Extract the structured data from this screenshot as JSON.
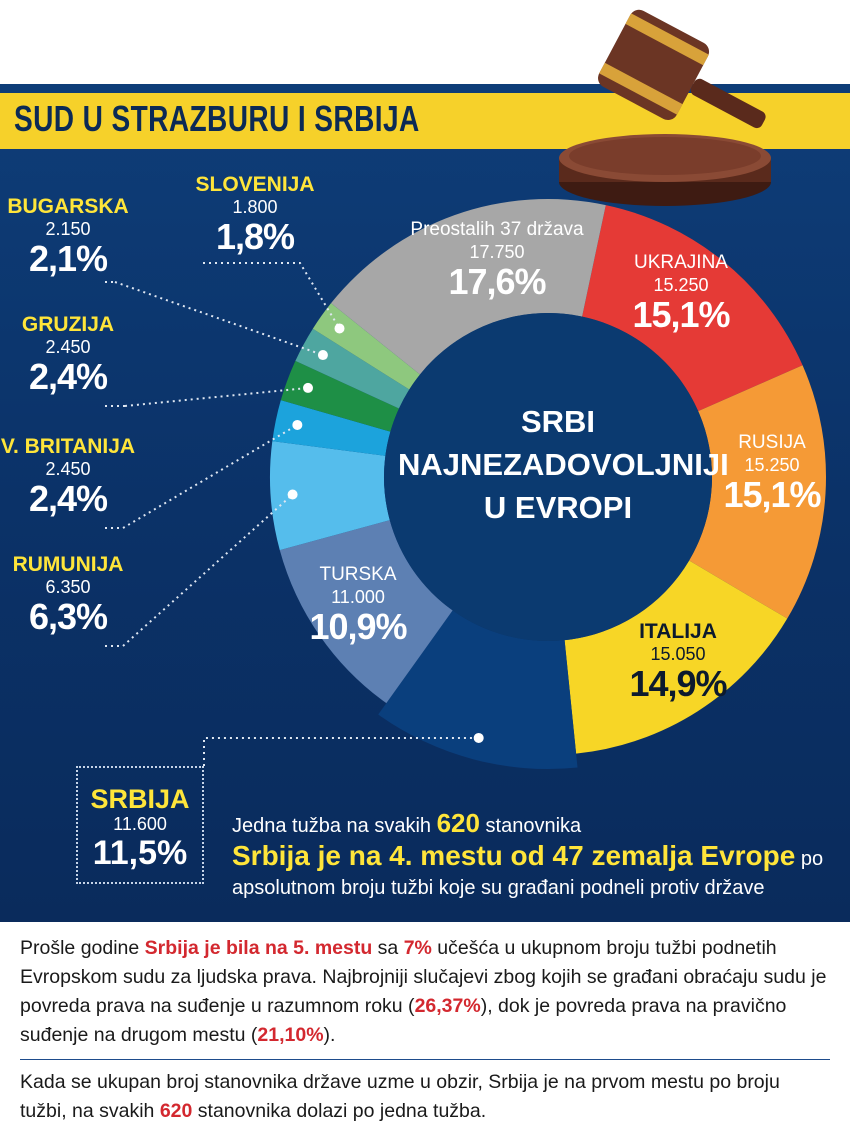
{
  "title": "SUD U STRAZBURU I SRBIJA",
  "center_text": [
    "SRBI",
    "NAJNEZADOVOLJNIJI",
    "U EVROPI"
  ],
  "colors": {
    "background": "#0b3268",
    "banner": "#f6d12a",
    "label_yellow": "#ffe53a",
    "highlight_red": "#d3282f"
  },
  "chart_data": {
    "type": "pie",
    "variant": "donut",
    "title": "SRBI NAJNEZADOVOLJNIJI U EVROPI",
    "slices": [
      {
        "name": "UKRAJINA",
        "count": "15.250",
        "pct": "15,1%",
        "value": 15.1,
        "color": "#e53a36"
      },
      {
        "name": "RUSIJA",
        "count": "15.250",
        "pct": "15,1%",
        "value": 15.1,
        "color": "#f59a36"
      },
      {
        "name": "ITALIJA",
        "count": "15.050",
        "pct": "14,9%",
        "value": 14.9,
        "color": "#f7d626"
      },
      {
        "name": "SRBIJA",
        "count": "11.600",
        "pct": "11,5%",
        "value": 11.5,
        "color": "#0a3f7d"
      },
      {
        "name": "TURSKA",
        "count": "11.000",
        "pct": "10,9%",
        "value": 10.9,
        "color": "#5d80b3"
      },
      {
        "name": "RUMUNIJA",
        "count": "6.350",
        "pct": "6,3%",
        "value": 6.3,
        "color": "#55bdec"
      },
      {
        "name": "V. BRITANIJA",
        "count": "2.450",
        "pct": "2,4%",
        "value": 2.4,
        "color": "#1ca3dc"
      },
      {
        "name": "GRUZIJA",
        "count": "2.450",
        "pct": "2,4%",
        "value": 2.4,
        "color": "#1e8f46"
      },
      {
        "name": "BUGARSKA",
        "count": "2.150",
        "pct": "2,1%",
        "value": 2.1,
        "color": "#4ea6a0"
      },
      {
        "name": "SLOVENIJA",
        "count": "1.800",
        "pct": "1,8%",
        "value": 1.8,
        "color": "#8ec87e"
      },
      {
        "name": "Preostalih 37 država",
        "count": "17.750",
        "pct": "17,6%",
        "value": 17.6,
        "color": "#a7a7a7"
      }
    ]
  },
  "srbija_info": {
    "line1_pre": "Jedna tužba na svakih ",
    "line1_num": "620",
    "line1_post": " stanovnika",
    "line2_bold": "Srbija je na 4. mestu od 47 zemalja Evrope",
    "line2_post": " po",
    "line3": "apsolutnom broju tužbi koje su građani podneli protiv države"
  },
  "notes": {
    "p1_a": "Prošle godine ",
    "p1_b": "Srbija je bila na 5. mestu",
    "p1_c": " sa ",
    "p1_d": "7%",
    "p1_e": " učešća u ukupnom broju tužbi podnetih Evropskom sudu za ljudska prava. Najbrojniji slučajevi zbog kojih se građani obraćaju sudu je povreda prava na suđenje u razumnom roku (",
    "p1_f": "26,37%",
    "p1_g": "), dok je povreda prava na pravično suđenje na drugom mestu (",
    "p1_h": "21,10%",
    "p1_i": ").",
    "p2_a": "Kada se ukupan broj stanovnika države uzme u obzir, Srbija je na prvom mestu po broju tužbi, na svakih ",
    "p2_b": "620",
    "p2_c": " stanovnika dolazi po jedna tužba."
  }
}
